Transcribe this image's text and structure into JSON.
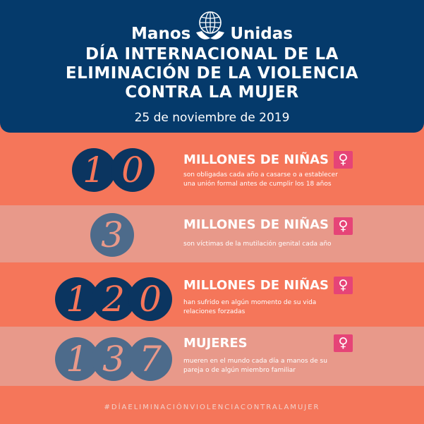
{
  "brand": {
    "left": "Manos",
    "right": "Unidas"
  },
  "title": {
    "line1": "DÍA INTERNACIONAL DE LA",
    "line2": "ELIMINACIÓN DE LA VIOLENCIA",
    "line3": "CONTRA LA MUJER"
  },
  "date": "25 de noviembre de 2019",
  "venus_symbol": "♀",
  "stats": [
    {
      "digits": [
        "1",
        "0"
      ],
      "headline": "MILLONES DE NIÑAS",
      "desc1": "son obligadas cada año a casarse o a establecer",
      "desc2": "una unión formal antes de cumplir los 18 años"
    },
    {
      "digits": [
        "3"
      ],
      "headline": "MILLONES DE NIÑAS",
      "desc1": "son víctimas de la mutilación genital cada año"
    },
    {
      "digits": [
        "1",
        "2",
        "0"
      ],
      "headline": "MILLONES DE NIÑAS",
      "desc1": "han sufrido en algún momento de su vida",
      "desc2": "relaciones forzadas"
    },
    {
      "digits": [
        "1",
        "3",
        "7"
      ],
      "headline": "MUJERES",
      "desc1": "mueren en el mundo cada día a manos de su",
      "desc2": "pareja o de algún miembro familiar"
    }
  ],
  "hashtag": "#DÍAELIMINACIÓNVIOLENCIACONTRALAMUJER",
  "colors": {
    "navy": "#053a6b",
    "coral": "#f5765a",
    "pale_coral": "#e8998a",
    "pink": "#e64477"
  },
  "icons": [
    "globe-hands-logo-icon",
    "venus-icon"
  ]
}
